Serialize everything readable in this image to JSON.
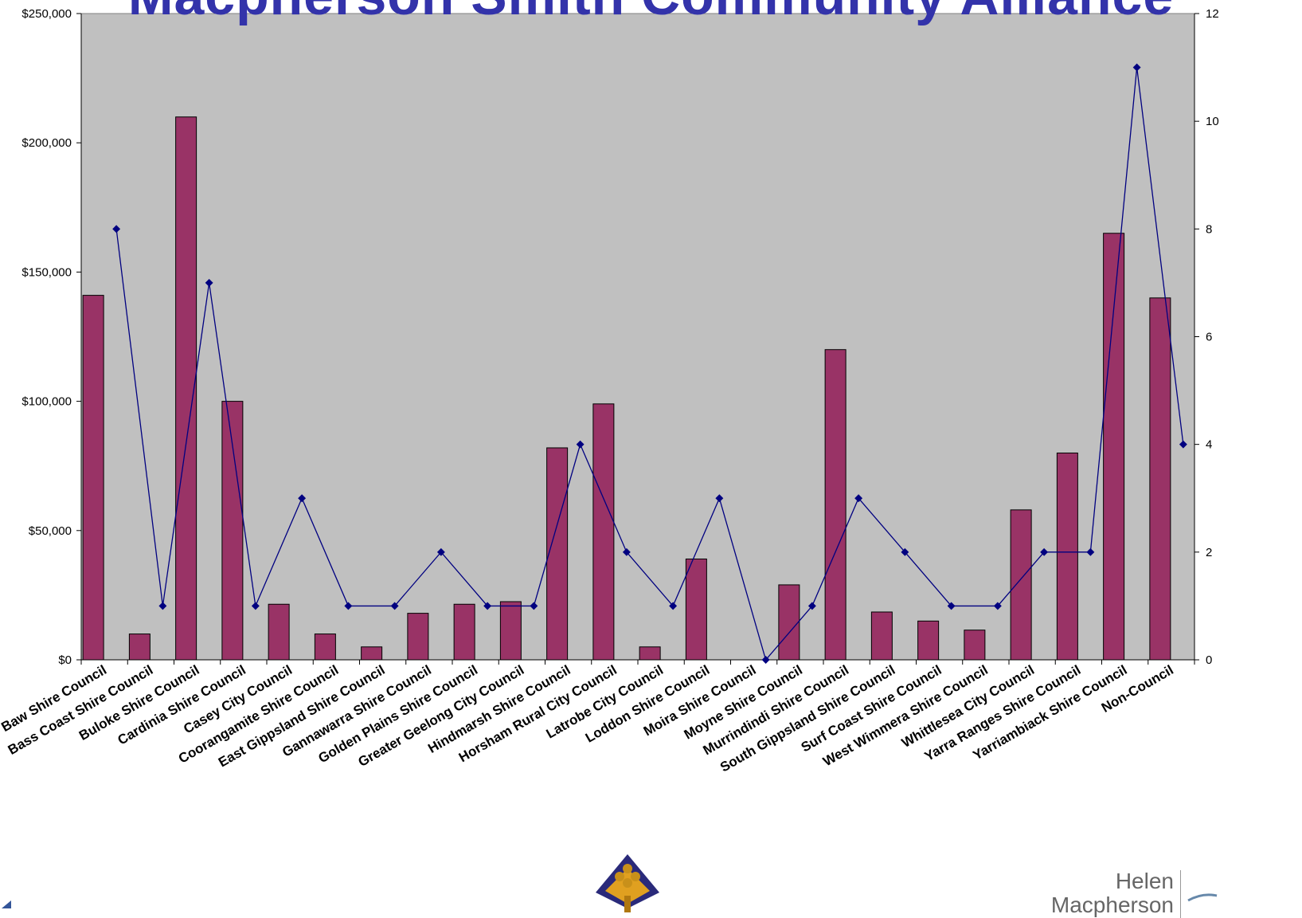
{
  "title": "Macpherson Smith Community Alliance",
  "logo_text": {
    "line1": "Helen",
    "line2": "Macpherson"
  },
  "colors": {
    "plot_bg": "#c0c0c0",
    "bar": "#993366",
    "line": "#000080"
  },
  "chart_data": {
    "type": "bar",
    "categories": [
      "Baw Baw Shire Council",
      "Bass Coast Shire Council",
      "Buloke Shire Council",
      "Cardinia Shire Council",
      "Casey City Council",
      "Coorangamite Shire Council",
      "East Gippsland Shire Council",
      "Gannawarra Shire Council",
      "Golden Plains Shire Council",
      "Greater Geelong City Council",
      "Hindmarsh Shire Council",
      "Horsham Rural City Council",
      "Latrobe City Council",
      "Loddon Shire Council",
      "Moira Shire Council",
      "Moyne Shire Council",
      "Murrindindi Shire Council",
      "South Gippsland Shire Council",
      "Surf Coast Shire Council",
      "West Wimmera Shire Council",
      "Whittlesea City Council",
      "Yarra Ranges Shire Council",
      "Yarriambiack Shire Council",
      "Non-Council"
    ],
    "series": [
      {
        "type": "bar",
        "axis": "left",
        "values": [
          141000,
          10000,
          210000,
          100000,
          21500,
          10000,
          5000,
          18000,
          21500,
          22500,
          82000,
          99000,
          5000,
          39000,
          0,
          29000,
          120000,
          18500,
          15000,
          11500,
          58000,
          80000,
          165000,
          140000
        ]
      },
      {
        "type": "line",
        "axis": "right",
        "values": [
          8,
          1,
          7,
          1,
          3,
          1,
          1,
          2,
          1,
          1,
          4,
          2,
          1,
          3,
          0,
          1,
          3,
          2,
          1,
          1,
          2,
          2,
          11,
          4
        ]
      }
    ],
    "y_left": {
      "ylim": [
        0,
        250000
      ],
      "ticks": [
        "$0",
        "$50,000",
        "$100,000",
        "$150,000",
        "$200,000",
        "$250,000"
      ]
    },
    "y_right": {
      "ylim": [
        0,
        12
      ],
      "ticks": [
        "0",
        "2",
        "4",
        "6",
        "8",
        "10",
        "12"
      ]
    },
    "grid": false,
    "legend": "none"
  }
}
